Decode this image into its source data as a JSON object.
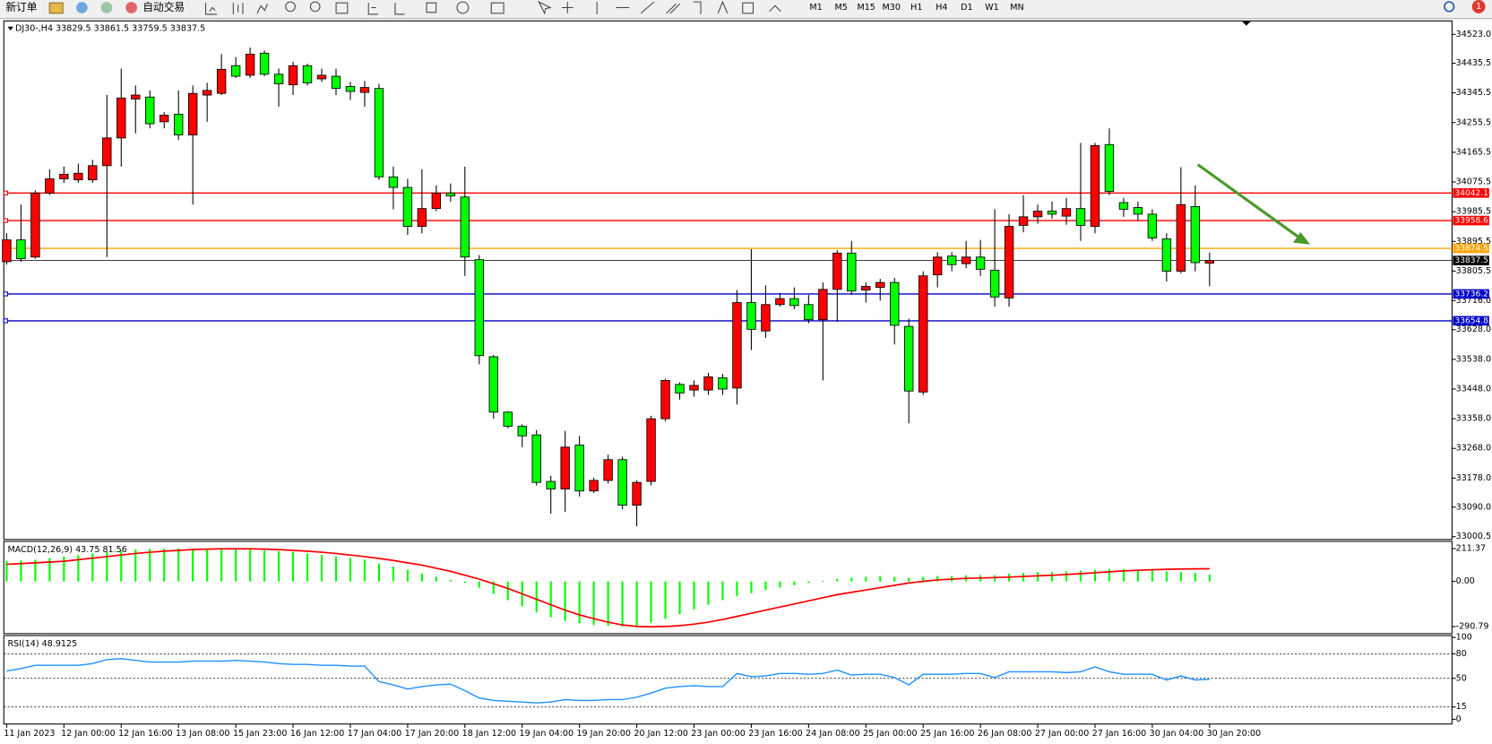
{
  "toolbar": {
    "new_order": "新订单",
    "auto_trading": "自动交易",
    "timeframes": [
      "M1",
      "M5",
      "M15",
      "M30",
      "H1",
      "H4",
      "D1",
      "W1",
      "MN"
    ],
    "alert_count": "1"
  },
  "chart_data": [
    {
      "type": "candlestick",
      "title": "DJ30-,H4  33829.5 33861.5 33759.5 33837.5",
      "categories": [
        "11 Jan 2023",
        null,
        null,
        null,
        "12 Jan 00:00",
        null,
        null,
        null,
        "12 Jan 16:00",
        null,
        null,
        null,
        "13 Jan 08:00",
        null,
        null,
        null,
        "15 Jan 23:00",
        null,
        null,
        null,
        "16 Jan 12:00",
        null,
        null,
        null,
        "17 Jan 04:00",
        null,
        null,
        null,
        "17 Jan 20:00",
        null,
        null,
        null,
        "18 Jan 12:00",
        null,
        null,
        null,
        "19 Jan 04:00",
        null,
        null,
        null,
        "19 Jan 20:00",
        null,
        null,
        null,
        "20 Jan 12:00",
        null,
        null,
        null,
        "23 Jan 00:00",
        null,
        null,
        null,
        "23 Jan 16:00",
        null,
        null,
        null,
        "24 Jan 08:00",
        null,
        null,
        null,
        "25 Jan 00:00",
        null,
        null,
        null,
        "25 Jan 16:00",
        null,
        null,
        null,
        "26 Jan 08:00",
        null,
        null,
        null,
        "27 Jan 00:00",
        null,
        null,
        null,
        "27 Jan 16:00",
        null,
        null,
        null,
        "30 Jan 04:00",
        null,
        null,
        null,
        "30 Jan 20:00"
      ],
      "open": [
        33834,
        33900,
        33848,
        34042,
        34085,
        34082,
        34082,
        34125,
        34209,
        34327,
        34333,
        34258,
        34281,
        34218,
        34339,
        34344,
        34428,
        34399,
        34466,
        34402,
        34370,
        34428,
        34388,
        34396,
        34365,
        34347,
        34359,
        34091,
        34059,
        33941,
        33995,
        34042,
        34030,
        33840,
        33546,
        33378,
        33335,
        33309,
        33168,
        33145,
        33278,
        33139,
        33171,
        33234,
        33096,
        33168,
        33358,
        33462,
        33445,
        33445,
        33482,
        33451,
        33710,
        33624,
        33704,
        33722,
        33704,
        33658,
        33750,
        33860,
        33748,
        33756,
        33771,
        33638,
        33439,
        33794,
        33851,
        33828,
        33848,
        33808,
        33724,
        33944,
        33970,
        33987,
        33972,
        33995,
        33941,
        34189,
        34013,
        33998,
        33978,
        33903,
        33805,
        34001,
        33829.5
      ],
      "high": [
        33920,
        34007,
        34050,
        34114,
        34122,
        34131,
        34143,
        34339,
        34419,
        34368,
        34353,
        34287,
        34353,
        34368,
        34376,
        34463,
        34454,
        34483,
        34474,
        34419,
        34440,
        34434,
        34419,
        34419,
        34379,
        34382,
        34373,
        34122,
        34085,
        34114,
        34065,
        34071,
        34122,
        33854,
        33551,
        33381,
        33341,
        33324,
        33185,
        33321,
        33306,
        33179,
        33249,
        33243,
        33171,
        33367,
        33479,
        33468,
        33474,
        33497,
        33494,
        33748,
        33872,
        33762,
        33739,
        33756,
        33733,
        33771,
        33869,
        33897,
        33771,
        33782,
        33785,
        33661,
        33805,
        33863,
        33863,
        33897,
        33900,
        33993,
        33978,
        34036,
        34007,
        34016,
        34027,
        34194,
        34194,
        34238,
        34027,
        34016,
        33993,
        33920,
        34120,
        34065,
        33861.5
      ],
      "low": [
        33825,
        33834,
        33843,
        34036,
        34073,
        34073,
        34073,
        33848,
        34122,
        34223,
        34238,
        34238,
        34203,
        34007,
        34258,
        34339,
        34391,
        34391,
        34396,
        34304,
        34339,
        34368,
        34379,
        34339,
        34324,
        34304,
        34082,
        33993,
        33915,
        33920,
        33987,
        34016,
        33791,
        33523,
        33358,
        33329,
        33272,
        33156,
        33070,
        33076,
        33122,
        33133,
        33162,
        33084,
        33032,
        33156,
        33350,
        33416,
        33425,
        33430,
        33430,
        33401,
        33566,
        33603,
        33698,
        33690,
        33647,
        33474,
        33652,
        33733,
        33710,
        33716,
        33583,
        33344,
        33430,
        33756,
        33805,
        33814,
        33791,
        33698,
        33698,
        33923,
        33949,
        33964,
        33946,
        33897,
        33920,
        34036,
        33970,
        33958,
        33897,
        33774,
        33799,
        33805,
        33759.5
      ],
      "close": [
        33900,
        33843,
        34042,
        34085,
        34099,
        34102,
        34125,
        34209,
        34330,
        34339,
        34252,
        34278,
        34218,
        34344,
        34353,
        34417,
        34396,
        34463,
        34402,
        34373,
        34428,
        34376,
        34399,
        34359,
        34350,
        34362,
        34091,
        34059,
        33941,
        33995,
        34042,
        34033,
        33848,
        33549,
        33378,
        33335,
        33306,
        33165,
        33145,
        33272,
        33139,
        33171,
        33234,
        33096,
        33165,
        33358,
        33474,
        33436,
        33459,
        33485,
        33448,
        33710,
        33629,
        33704,
        33722,
        33701,
        33658,
        33750,
        33860,
        33745,
        33759,
        33771,
        33641,
        33442,
        33791,
        33848,
        33825,
        33848,
        33811,
        33727,
        33941,
        33970,
        33987,
        33978,
        33995,
        33944,
        34186,
        34047,
        33993,
        33978,
        33906,
        33805,
        34007,
        33831,
        33837.5
      ],
      "up_color": "#ff0000",
      "down_color": "#00ff00",
      "ylim": [
        32995,
        34555
      ],
      "yticks": [
        {
          "value": 34523,
          "label": "34523.0"
        },
        34435.5,
        34345.5,
        34255.5,
        34165.5,
        34075.5,
        33985.5,
        33895.5,
        33805.5,
        {
          "value": 33716,
          "label": "33716.0"
        },
        {
          "value": 33628,
          "label": "33628.0"
        },
        {
          "value": 33538,
          "label": "33538.0"
        },
        {
          "value": 33448,
          "label": "33448.0"
        },
        {
          "value": 33358,
          "label": "33358.0"
        },
        {
          "value": 33268,
          "label": "33268.0"
        },
        {
          "value": 33178,
          "label": "33178.0"
        },
        {
          "value": 33090,
          "label": "33090.0"
        },
        33000.5
      ],
      "levels": [
        {
          "value": 34042.1,
          "color": "#ff0000"
        },
        {
          "value": 33958.6,
          "color": "#ff0000"
        },
        {
          "value": 33874.5,
          "color": "#ffa500"
        },
        {
          "value": 33837.5,
          "color": "#000000"
        },
        {
          "value": 33736.2,
          "color": "#0000cc"
        },
        {
          "value": 33654.8,
          "color": "#0000cc"
        }
      ]
    },
    {
      "type": "macd",
      "title": "MACD(12,26,9) 43.75 81.56",
      "series": [
        {
          "type": "bar",
          "color": "#00ff00",
          "values": [
            130,
            135,
            140,
            150,
            160,
            170,
            180,
            190,
            200,
            205,
            210,
            212,
            212,
            210,
            210,
            212,
            210,
            205,
            200,
            195,
            190,
            180,
            170,
            160,
            150,
            140,
            115,
            95,
            75,
            50,
            30,
            10,
            -10,
            -40,
            -80,
            -120,
            -160,
            -200,
            -230,
            -255,
            -270,
            -280,
            -285,
            -290,
            -285,
            -265,
            -240,
            -210,
            -180,
            -150,
            -120,
            -95,
            -75,
            -55,
            -40,
            -25,
            -10,
            5,
            15,
            25,
            30,
            35,
            30,
            25,
            30,
            35,
            35,
            40,
            40,
            40,
            50,
            55,
            60,
            60,
            65,
            70,
            75,
            80,
            80,
            75,
            70,
            65,
            60,
            55,
            43.75
          ]
        },
        {
          "type": "line",
          "color": "#ff0000",
          "values": [
            110,
            115,
            120,
            125,
            130,
            140,
            150,
            160,
            170,
            180,
            188,
            195,
            200,
            205,
            208,
            210,
            210,
            210,
            208,
            205,
            200,
            195,
            188,
            180,
            170,
            160,
            148,
            135,
            120,
            105,
            85,
            65,
            40,
            15,
            -15,
            -45,
            -80,
            -115,
            -150,
            -185,
            -215,
            -240,
            -262,
            -280,
            -290,
            -292,
            -290,
            -285,
            -275,
            -262,
            -245,
            -225,
            -205,
            -185,
            -165,
            -145,
            -125,
            -105,
            -85,
            -70,
            -55,
            -40,
            -25,
            -10,
            0,
            10,
            15,
            20,
            22,
            25,
            28,
            32,
            36,
            40,
            45,
            50,
            56,
            62,
            68,
            72,
            75,
            78,
            80,
            81,
            81.56
          ]
        }
      ],
      "ylim": [
        -330,
        252
      ],
      "yticks": [
        211.37,
        {
          "value": 0,
          "label": "0.00"
        },
        -290.79
      ]
    },
    {
      "type": "rsi",
      "title": "RSI(14) 48.9125",
      "color": "#1e90ff",
      "values": [
        59,
        62,
        66,
        66,
        66,
        66,
        68,
        73,
        74,
        72,
        70,
        70,
        70,
        71,
        71,
        71,
        72,
        71,
        70,
        68,
        67,
        67,
        66,
        66,
        65,
        65,
        46,
        42,
        37,
        40,
        42,
        43,
        35,
        26,
        23,
        22,
        21,
        20,
        21,
        24,
        23,
        23,
        24,
        24,
        27,
        32,
        38,
        40,
        41,
        40,
        40,
        56,
        52,
        53,
        56,
        56,
        55,
        56,
        60,
        54,
        55,
        55,
        51,
        42,
        55,
        55,
        55,
        56,
        56,
        51,
        58,
        58,
        58,
        58,
        57,
        58,
        64,
        58,
        55,
        55,
        55,
        48,
        53,
        48,
        48.9125
      ],
      "ylim": [
        0,
        100
      ],
      "yticks": [
        100,
        80,
        50,
        15,
        0
      ],
      "levels": [
        80,
        50,
        15
      ]
    }
  ]
}
